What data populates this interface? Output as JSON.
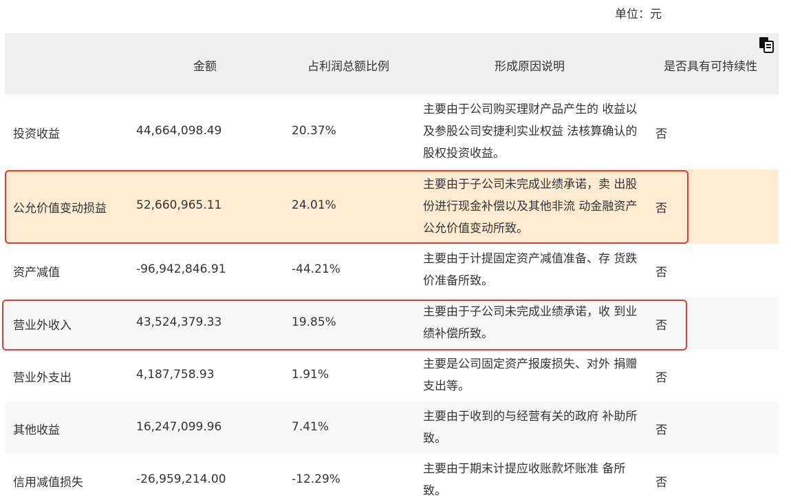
{
  "unit_label": "单位：元",
  "headers": {
    "amount": "金额",
    "ratio": "占利润总额比例",
    "reason": "形成原因说明",
    "sustainable": "是否具有可持续性"
  },
  "rows": [
    {
      "item": "投资收益",
      "amount": "44,664,098.49",
      "ratio": "20.37%",
      "reason": "主要由于公司购买理财产品产生的 收益以及参股公司安捷利实业权益 法核算确认的股权投资收益。",
      "sustainable": "否"
    },
    {
      "item": "公允价值变动损益",
      "amount": "52,660,965.11",
      "ratio": "24.01%",
      "reason": "主要由于子公司未完成业绩承诺，卖 出股份进行现金补偿以及其他非流 动金融资产公允价值变动所致。",
      "sustainable": "否"
    },
    {
      "item": "资产减值",
      "amount": "-96,942,846.91",
      "ratio": "-44.21%",
      "reason": "主要由于计提固定资产减值准备、存 货跌价准备所致。",
      "sustainable": "否"
    },
    {
      "item": "营业外收入",
      "amount": "43,524,379.33",
      "ratio": "19.85%",
      "reason": "主要由于子公司未完成业绩承诺，收 到业绩补偿所致。",
      "sustainable": "否"
    },
    {
      "item": "营业外支出",
      "amount": "4,187,758.93",
      "ratio": "1.91%",
      "reason": "主要是公司固定资产报废损失、对外 捐赠支出等。",
      "sustainable": "否"
    },
    {
      "item": "其他收益",
      "amount": "16,247,099.96",
      "ratio": "7.41%",
      "reason": "主要由于收到的与经营有关的政府 补助所致。",
      "sustainable": "否"
    },
    {
      "item": "信用减值损失",
      "amount": "-26,959,214.00",
      "ratio": "-12.29%",
      "reason": "主要由于期末计提应收账款坏账准 备所致。",
      "sustainable": "否"
    }
  ],
  "icons": {
    "copy": "copy-icon"
  },
  "colors": {
    "highlight_row": "#fdebd2",
    "highlight_border": "#e53935",
    "header_bg": "#efefef",
    "alt_row": "#f7f7f7"
  }
}
